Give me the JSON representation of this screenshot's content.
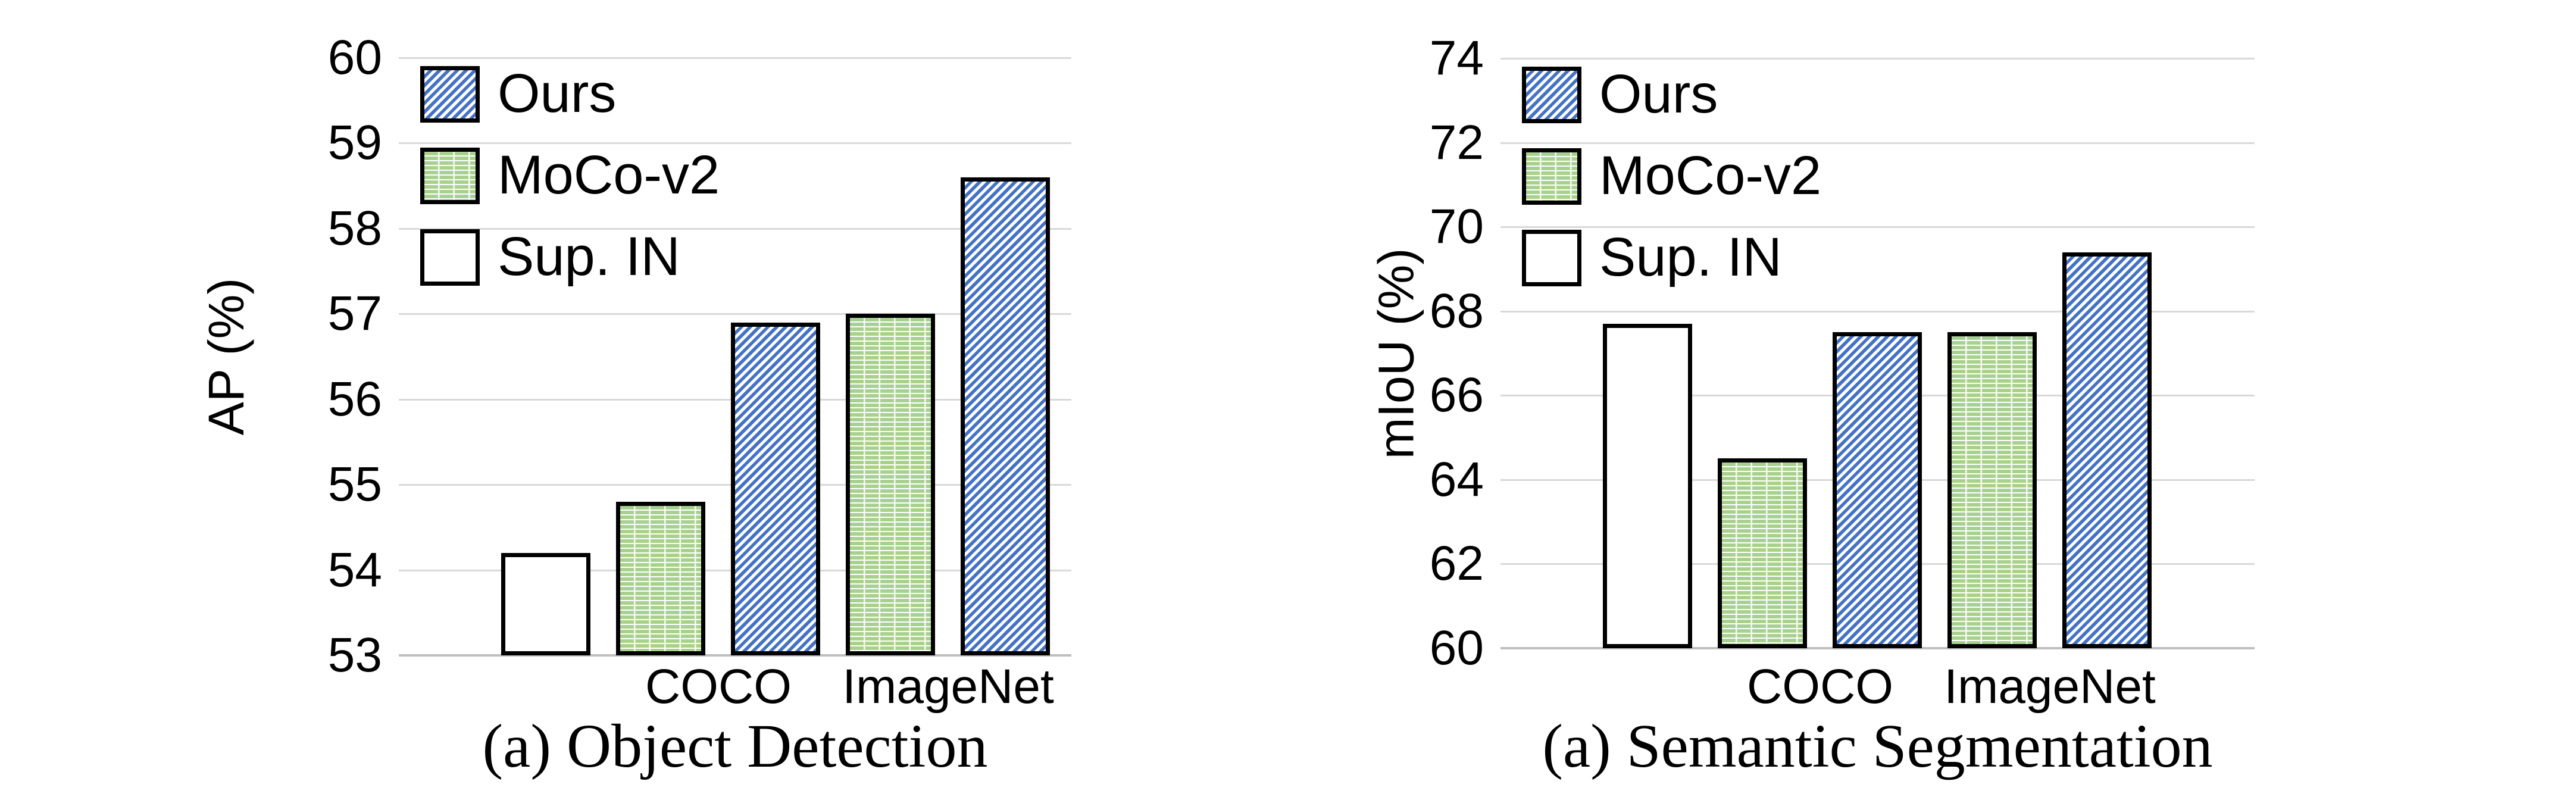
{
  "figure": {
    "background": "#FFFFFF"
  },
  "colors": {
    "ours_blue": "#4472C4",
    "moco_green": "#A9D18E",
    "bar_border": "#000000",
    "gridline": "#D9D9D9",
    "axis_line": "#BFBFBF",
    "text": "#000000"
  },
  "legend": {
    "position": "inside-top-left",
    "items": [
      {
        "label": "Ours",
        "pattern": "blue-diagonal",
        "color": "#4472C4"
      },
      {
        "label": "MoCo-v2",
        "pattern": "green-horizontal",
        "color": "#A9D18E"
      },
      {
        "label": "Sup. IN",
        "pattern": "plain-white",
        "color": "#FFFFFF"
      }
    ]
  },
  "chart_data": [
    {
      "type": "bar",
      "title": "(a) Object Detection",
      "ylabel": "AP (%)",
      "ylim": [
        53,
        60
      ],
      "yticks": [
        53,
        54,
        55,
        56,
        57,
        58,
        59,
        60
      ],
      "grid": true,
      "legend_position": "inside-top-left",
      "x_group_labels": [
        "COCO",
        "ImageNet"
      ],
      "bars": [
        {
          "series": "Sup. IN",
          "group": "",
          "value": 54.2
        },
        {
          "series": "MoCo-v2",
          "group": "COCO",
          "value": 54.8
        },
        {
          "series": "Ours",
          "group": "COCO",
          "value": 56.9
        },
        {
          "series": "MoCo-v2",
          "group": "ImageNet",
          "value": 57.0
        },
        {
          "series": "Ours",
          "group": "ImageNet",
          "value": 58.6
        }
      ]
    },
    {
      "type": "bar",
      "title": "(a) Semantic Segmentation",
      "ylabel": "mIoU (%)",
      "ylim": [
        60,
        74
      ],
      "yticks": [
        60,
        62,
        64,
        66,
        68,
        70,
        72,
        74
      ],
      "grid": true,
      "legend_position": "inside-top-left",
      "x_group_labels": [
        "COCO",
        "ImageNet"
      ],
      "bars": [
        {
          "series": "Sup. IN",
          "group": "",
          "value": 67.7
        },
        {
          "series": "MoCo-v2",
          "group": "COCO",
          "value": 64.5
        },
        {
          "series": "Ours",
          "group": "COCO",
          "value": 67.5
        },
        {
          "series": "MoCo-v2",
          "group": "ImageNet",
          "value": 67.5
        },
        {
          "series": "Ours",
          "group": "ImageNet",
          "value": 69.4
        }
      ]
    }
  ]
}
